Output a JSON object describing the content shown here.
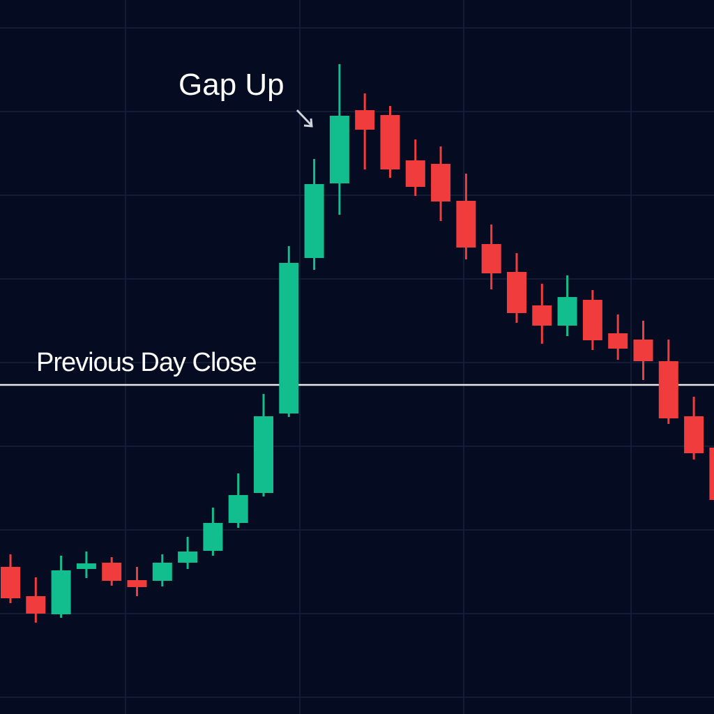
{
  "chart_data": {
    "type": "candlestick",
    "open": [
      21.1,
      16.9,
      14.3,
      20.8,
      21.7,
      19.2,
      19.1,
      21.7,
      23.4,
      27.4,
      31.7,
      43.1,
      65.4,
      76.1,
      86.6,
      85.9,
      79.4,
      78.9,
      73.6,
      67.4,
      63.4,
      58.6,
      55.7,
      59.4,
      54.6,
      53.7,
      50.6,
      42.7,
      38.2
    ],
    "high": [
      22.9,
      19.6,
      22.7,
      23.3,
      22.5,
      21.1,
      22.9,
      25.4,
      29.6,
      34.5,
      45.9,
      67.1,
      79.6,
      93.2,
      89.0,
      87.2,
      82.4,
      81.4,
      77.5,
      70.2,
      66.1,
      61.7,
      62.9,
      60.8,
      57.3,
      56.4,
      53.7,
      45.5,
      39.0
    ],
    "low": [
      15.9,
      13.1,
      13.8,
      19.5,
      18.4,
      16.9,
      18.3,
      20.8,
      22.7,
      26.7,
      31.2,
      42.6,
      63.7,
      71.6,
      78.1,
      76.9,
      74.3,
      70.7,
      65.2,
      60.9,
      56.1,
      53.1,
      54.2,
      52.2,
      50.8,
      47.9,
      41.6,
      36.5,
      30.7
    ],
    "close": [
      16.6,
      14.4,
      20.6,
      21.6,
      19.1,
      18.2,
      21.7,
      23.3,
      27.4,
      31.4,
      42.7,
      64.7,
      76.0,
      85.8,
      83.8,
      78.1,
      75.6,
      73.5,
      66.9,
      63.2,
      57.5,
      55.7,
      59.8,
      53.6,
      52.4,
      50.6,
      42.4,
      37.4,
      30.7
    ],
    "up_color": "#12bd8e",
    "down_color": "#f03c3c",
    "ylim": [
      0,
      102.4
    ],
    "grid": true,
    "reference_line": {
      "label": "Previous Day Close",
      "value": 47.2,
      "color": "#e8e8e8"
    },
    "annotations": [
      {
        "text": "Gap Up"
      }
    ]
  }
}
